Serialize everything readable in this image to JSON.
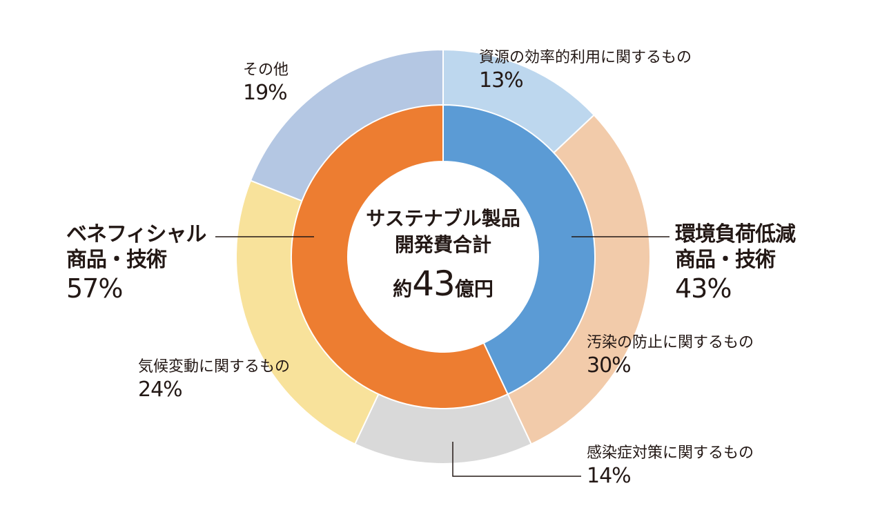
{
  "chart_data": {
    "type": "pie",
    "center": {
      "title_line1": "サステナブル製品",
      "title_line2": "開発費合計",
      "amount_prefix": "約",
      "amount_value": "43",
      "amount_suffix": "億円"
    },
    "inner_ring": [
      {
        "label_line1": "環境負荷低減",
        "label_line2": "商品・技術",
        "value": 43,
        "value_label": "43%",
        "color": "#5b9bd5"
      },
      {
        "label_line1": "ベネフィシャル",
        "label_line2": "商品・技術",
        "value": 57,
        "value_label": "57%",
        "color": "#ed7d31"
      }
    ],
    "outer_ring": [
      {
        "label": "資源の効率的利用に関するもの",
        "value": 13,
        "value_label": "13%",
        "color": "#bdd7ee"
      },
      {
        "label": "汚染の防止に関するもの",
        "value": 30,
        "value_label": "30%",
        "color": "#f2cbaa"
      },
      {
        "label": "感染症対策に関するもの",
        "value": 14,
        "value_label": "14%",
        "color": "#d9d9d9"
      },
      {
        "label": "気候変動に関するもの",
        "value": 24,
        "value_label": "24%",
        "color": "#f8e29b"
      },
      {
        "label": "その他",
        "value": 19,
        "value_label": "19%",
        "color": "#b4c7e3"
      }
    ]
  }
}
